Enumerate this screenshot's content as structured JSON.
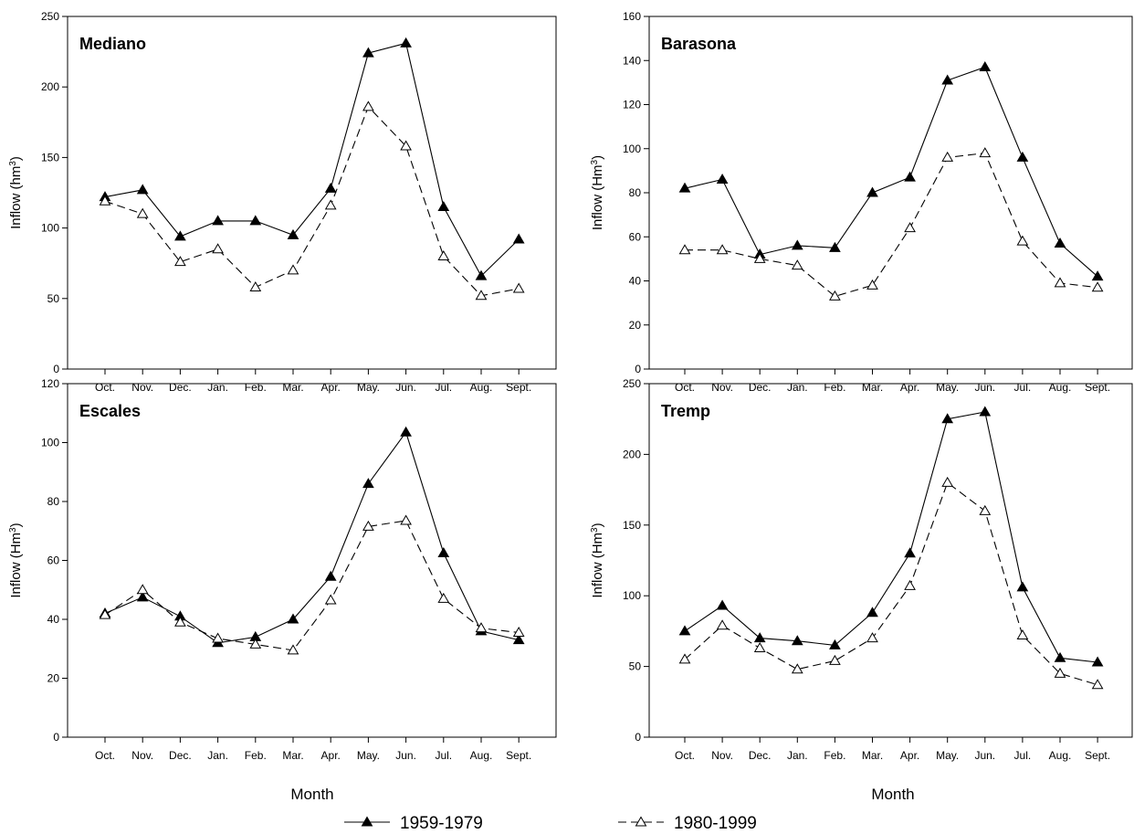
{
  "x_axis_title": "Month",
  "legend": [
    {
      "label": "1959-1979"
    },
    {
      "label": "1980-1999"
    }
  ],
  "chart_data": [
    {
      "type": "line",
      "title": "Mediano",
      "ylabel": "Inflow  (hm",
      "ylabel_sup": "3",
      "ylabel_end": ")",
      "xlabel": "",
      "categories": [
        "Oct.",
        "Nov.",
        "Dec.",
        "Jan.",
        "Feb.",
        "Mar.",
        "Apr.",
        "May.",
        "Jun.",
        "Jul.",
        "Aug.",
        "Sept."
      ],
      "ylim": [
        0,
        250
      ],
      "yticks": [
        0,
        50,
        100,
        150,
        200,
        250
      ],
      "series": [
        {
          "name": "1959-1979",
          "values": [
            122,
            127,
            94,
            105,
            105,
            95,
            128,
            224,
            231,
            115,
            66,
            92
          ]
        },
        {
          "name": "1980-1999",
          "values": [
            119,
            110,
            76,
            85,
            58,
            70,
            116,
            186,
            158,
            80,
            52,
            57
          ]
        }
      ]
    },
    {
      "type": "line",
      "title": "Barasona",
      "ylabel": "Inflow (Hm",
      "ylabel_sup": "3",
      "ylabel_end": ")",
      "xlabel": "",
      "categories": [
        "Oct.",
        "Nov.",
        "Dec.",
        "Jan.",
        "Feb.",
        "Mar.",
        "Apr.",
        "May.",
        "Jun.",
        "Jul.",
        "Aug.",
        "Sept."
      ],
      "ylim": [
        0,
        160
      ],
      "yticks": [
        0,
        20,
        40,
        60,
        80,
        100,
        120,
        140,
        160
      ],
      "series": [
        {
          "name": "1959-1979",
          "values": [
            82,
            86,
            52,
            56,
            55,
            80,
            87,
            131,
            137,
            96,
            57,
            42
          ]
        },
        {
          "name": "1980-1999",
          "values": [
            54,
            54,
            50,
            47,
            33,
            38,
            64,
            96,
            98,
            58,
            39,
            37
          ]
        }
      ]
    },
    {
      "type": "line",
      "title": "Escales",
      "ylabel": "Inflow (Hm",
      "ylabel_sup": "3",
      "ylabel_end": ")",
      "xlabel": "Month",
      "categories": [
        "Oct.",
        "Nov.",
        "Dec.",
        "Jan.",
        "Feb.",
        "Mar.",
        "Apr.",
        "May.",
        "Jun.",
        "Jul.",
        "Aug.",
        "Sept."
      ],
      "ylim": [
        0,
        120
      ],
      "yticks": [
        0,
        20,
        40,
        60,
        80,
        100,
        120
      ],
      "series": [
        {
          "name": "1959-1979",
          "values": [
            42,
            47.5,
            41,
            32,
            34,
            40,
            54.5,
            86,
            103.5,
            62.5,
            36,
            33
          ]
        },
        {
          "name": "1980-1999",
          "values": [
            41.5,
            50,
            39,
            33.5,
            31.5,
            29.5,
            46.5,
            71.5,
            73.5,
            47,
            37,
            35.5
          ]
        }
      ]
    },
    {
      "type": "line",
      "title": "Tremp",
      "ylabel": "Inflow  (Hm",
      "ylabel_sup": "3",
      "ylabel_end": ")",
      "xlabel": "Month",
      "categories": [
        "Oct.",
        "Nov.",
        "Dec.",
        "Jan.",
        "Feb.",
        "Mar.",
        "Apr.",
        "May.",
        "Jun.",
        "Jul.",
        "Aug.",
        "Sept."
      ],
      "ylim": [
        0,
        250
      ],
      "yticks": [
        0,
        50,
        100,
        150,
        200,
        250
      ],
      "series": [
        {
          "name": "1959-1979",
          "values": [
            75,
            93,
            70,
            68,
            65,
            88,
            130,
            225,
            230,
            106,
            56,
            53
          ]
        },
        {
          "name": "1980-1999",
          "values": [
            55,
            79,
            63,
            48,
            54,
            70,
            107,
            180,
            160,
            72,
            45,
            37
          ]
        }
      ]
    }
  ]
}
